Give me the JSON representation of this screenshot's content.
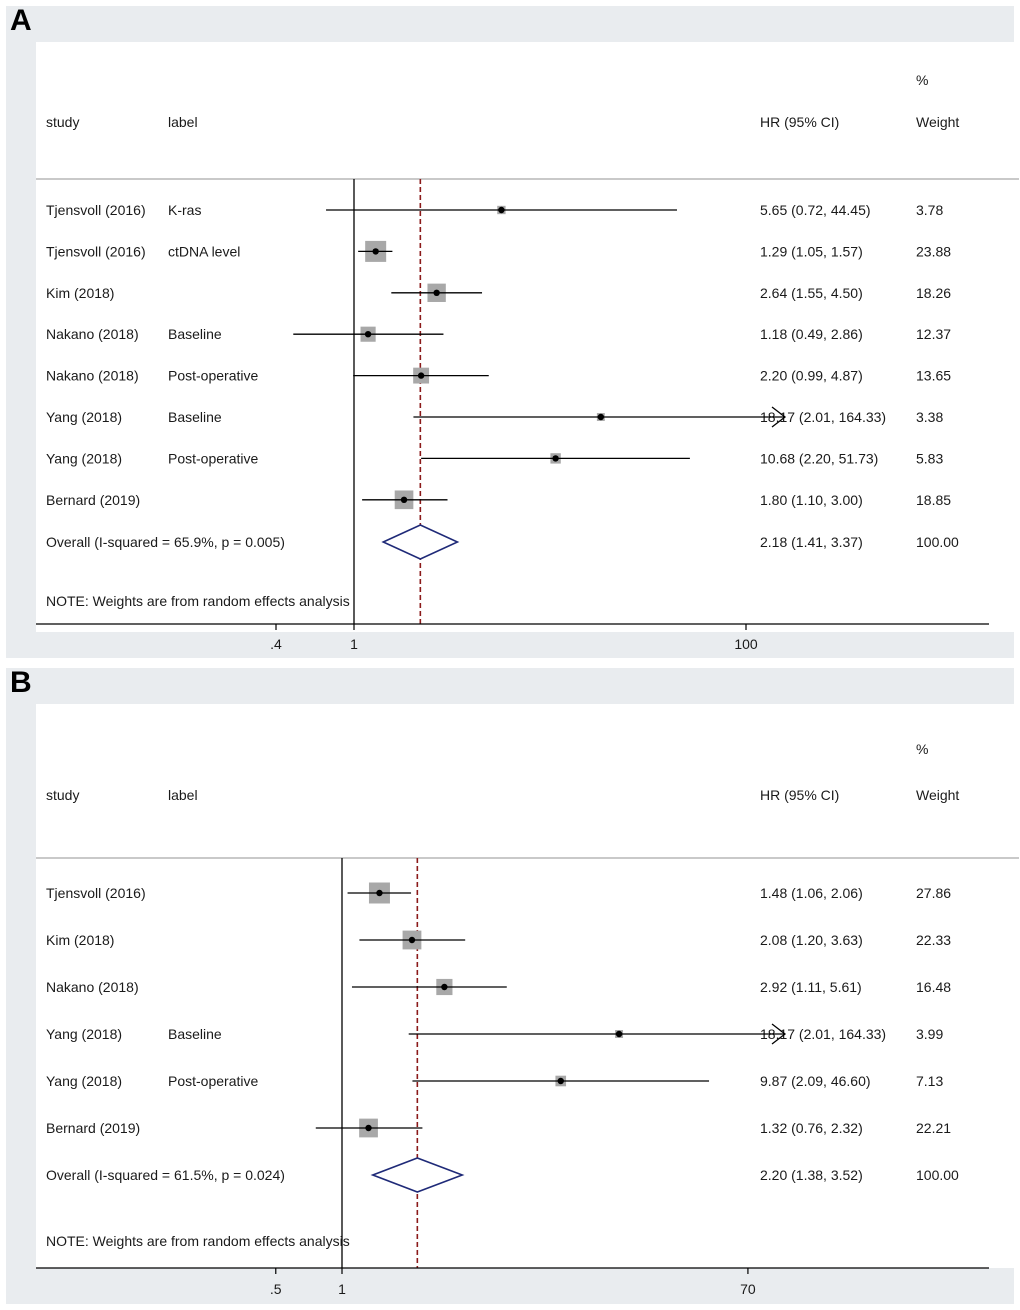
{
  "chart_data": [
    {
      "panel": "A",
      "type": "forest",
      "x_scale": "log",
      "xlim": [
        0.4,
        100
      ],
      "xticks": [
        ".4",
        "1",
        "100"
      ],
      "xtick_values": [
        0.4,
        1,
        100
      ],
      "null_line": 1,
      "pooled_line": 2.18,
      "headers": {
        "study": "study",
        "label": "label",
        "hr": "HR (95% CI)",
        "weight_top": "%",
        "weight": "Weight"
      },
      "note": "NOTE: Weights are from random effects analysis",
      "rows": [
        {
          "study": "Tjensvoll (2016)",
          "label": "K-ras",
          "hr": 5.65,
          "lo": 0.72,
          "hi": 44.45,
          "hr_text": "5.65 (0.72, 44.45)",
          "weight": "3.78",
          "w": 3.78,
          "arrow": false
        },
        {
          "study": "Tjensvoll (2016)",
          "label": "ctDNA level",
          "hr": 1.29,
          "lo": 1.05,
          "hi": 1.57,
          "hr_text": "1.29 (1.05, 1.57)",
          "weight": "23.88",
          "w": 23.88,
          "arrow": false
        },
        {
          "study": "Kim (2018)",
          "label": "",
          "hr": 2.64,
          "lo": 1.55,
          "hi": 4.5,
          "hr_text": "2.64 (1.55, 4.50)",
          "weight": "18.26",
          "w": 18.26,
          "arrow": false
        },
        {
          "study": "Nakano (2018)",
          "label": "Baseline",
          "hr": 1.18,
          "lo": 0.49,
          "hi": 2.86,
          "hr_text": "1.18 (0.49, 2.86)",
          "weight": "12.37",
          "w": 12.37,
          "arrow": false
        },
        {
          "study": "Nakano (2018)",
          "label": "Post-operative",
          "hr": 2.2,
          "lo": 0.99,
          "hi": 4.87,
          "hr_text": "2.20 (0.99, 4.87)",
          "weight": "13.65",
          "w": 13.65,
          "arrow": false
        },
        {
          "study": "Yang (2018)",
          "label": "Baseline",
          "hr": 18.17,
          "lo": 2.01,
          "hi": 164.33,
          "hr_text": "18.17 (2.01, 164.33)",
          "weight": "3.38",
          "w": 3.38,
          "arrow": true
        },
        {
          "study": "Yang (2018)",
          "label": "Post-operative",
          "hr": 10.68,
          "lo": 2.2,
          "hi": 51.73,
          "hr_text": "10.68 (2.20, 51.73)",
          "weight": "5.83",
          "w": 5.83,
          "arrow": false
        },
        {
          "study": "Bernard (2019)",
          "label": "",
          "hr": 1.8,
          "lo": 1.1,
          "hi": 3.0,
          "hr_text": "1.80 (1.10, 3.00)",
          "weight": "18.85",
          "w": 18.85,
          "arrow": false
        }
      ],
      "overall": {
        "text": "Overall  (I-squared = 65.9%, p = 0.005)",
        "hr": 2.18,
        "lo": 1.41,
        "hi": 3.37,
        "hr_text": "2.18 (1.41, 3.37)",
        "weight": "100.00"
      }
    },
    {
      "panel": "B",
      "type": "forest",
      "x_scale": "log",
      "xlim": [
        0.5,
        70
      ],
      "xticks": [
        ".5",
        "1",
        "70"
      ],
      "xtick_values": [
        0.5,
        1,
        70
      ],
      "null_line": 1,
      "pooled_line": 2.2,
      "headers": {
        "study": "study",
        "label": "label",
        "hr": "HR (95% CI)",
        "weight_top": "%",
        "weight": "Weight"
      },
      "note": "NOTE: Weights are from random effects analysis",
      "rows": [
        {
          "study": "Tjensvoll (2016)",
          "label": "",
          "hr": 1.48,
          "lo": 1.06,
          "hi": 2.06,
          "hr_text": "1.48 (1.06, 2.06)",
          "weight": "27.86",
          "w": 27.86,
          "arrow": false
        },
        {
          "study": "Kim (2018)",
          "label": "",
          "hr": 2.08,
          "lo": 1.2,
          "hi": 3.63,
          "hr_text": "2.08 (1.20, 3.63)",
          "weight": "22.33",
          "w": 22.33,
          "arrow": false
        },
        {
          "study": "Nakano (2018)",
          "label": "",
          "hr": 2.92,
          "lo": 1.11,
          "hi": 5.61,
          "hr_text": "2.92 (1.11, 5.61)",
          "weight": "16.48",
          "w": 16.48,
          "arrow": false
        },
        {
          "study": "Yang (2018)",
          "label": "Baseline",
          "hr": 18.17,
          "lo": 2.01,
          "hi": 164.33,
          "hr_text": "18.17 (2.01, 164.33)",
          "weight": "3.99",
          "w": 3.99,
          "arrow": true
        },
        {
          "study": "Yang (2018)",
          "label": "Post-operative",
          "hr": 9.87,
          "lo": 2.09,
          "hi": 46.6,
          "hr_text": "9.87 (2.09, 46.60)",
          "weight": "7.13",
          "w": 7.13,
          "arrow": false
        },
        {
          "study": "Bernard (2019)",
          "label": "",
          "hr": 1.32,
          "lo": 0.76,
          "hi": 2.32,
          "hr_text": "1.32 (0.76, 2.32)",
          "weight": "22.21",
          "w": 22.21,
          "arrow": false
        }
      ],
      "overall": {
        "text": "Overall  (I-squared = 61.5%, p = 0.024)",
        "hr": 2.2,
        "lo": 1.38,
        "hi": 3.52,
        "hr_text": "2.20 (1.38, 3.52)",
        "weight": "100.00"
      }
    }
  ],
  "colors": {
    "panel_bg": "#e9ecef",
    "plot_bg": "#ffffff",
    "ci_line": "#000000",
    "weight_box": "#a8a8a8",
    "point": "#000000",
    "pooled_line": "#8b1a1a",
    "diamond": "#1f2a78"
  }
}
